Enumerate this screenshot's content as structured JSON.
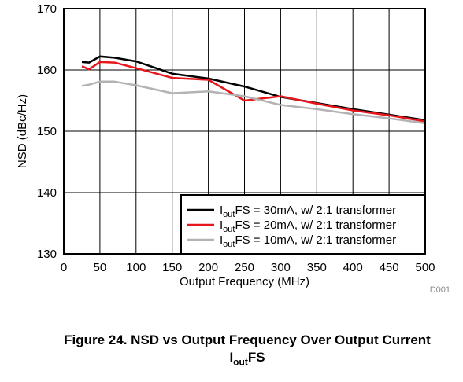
{
  "chart_data": {
    "type": "line",
    "title": "",
    "xlabel": "Output Frequency (MHz)",
    "ylabel": "NSD (dBc/Hz)",
    "xlim": [
      0,
      500
    ],
    "ylim": [
      130,
      170
    ],
    "x_ticks": [
      0,
      50,
      100,
      150,
      200,
      250,
      300,
      350,
      400,
      450,
      500
    ],
    "y_ticks": [
      130,
      140,
      150,
      160,
      170
    ],
    "grid": true,
    "legend_position": "bottom-right",
    "series": [
      {
        "name": "IoutFS = 30mA, w/ 2:1 transformer",
        "name_main": "I",
        "name_sub": "out",
        "name_rest": "FS = 30mA, w/ 2:1 transformer",
        "color": "#000000",
        "x": [
          25,
          35,
          50,
          70,
          100,
          150,
          200,
          250,
          300,
          350,
          400,
          450,
          500
        ],
        "y": [
          161.3,
          161.2,
          162.2,
          162.0,
          161.4,
          159.4,
          158.6,
          157.3,
          155.6,
          154.6,
          153.6,
          152.7,
          151.8
        ]
      },
      {
        "name": "IoutFS = 20mA, w/ 2:1 transformer",
        "name_main": "I",
        "name_sub": "out",
        "name_rest": "FS = 20mA, w/ 2:1 transformer",
        "color": "#e8161b",
        "x": [
          25,
          35,
          50,
          70,
          100,
          150,
          200,
          250,
          270,
          300,
          350,
          400,
          450,
          500
        ],
        "y": [
          160.6,
          160.1,
          161.3,
          161.2,
          160.3,
          158.7,
          158.4,
          155.0,
          155.3,
          155.7,
          154.5,
          153.4,
          152.6,
          151.6
        ]
      },
      {
        "name": "IoutFS = 10mA, w/ 2:1 transformer",
        "name_main": "I",
        "name_sub": "out",
        "name_rest": "FS = 10mA, w/ 2:1 transformer",
        "color": "#b3b3b3",
        "x": [
          25,
          35,
          50,
          70,
          100,
          150,
          200,
          250,
          300,
          350,
          400,
          450,
          500
        ],
        "y": [
          157.4,
          157.6,
          158.1,
          158.1,
          157.5,
          156.2,
          156.5,
          155.7,
          154.3,
          153.6,
          152.8,
          152.1,
          151.3
        ]
      }
    ]
  },
  "figure_id": "D001",
  "caption": {
    "line1": "Figure 24. NSD vs Output Frequency Over Output Current",
    "line2_main": "I",
    "line2_sub": "out",
    "line2_rest": "FS"
  }
}
